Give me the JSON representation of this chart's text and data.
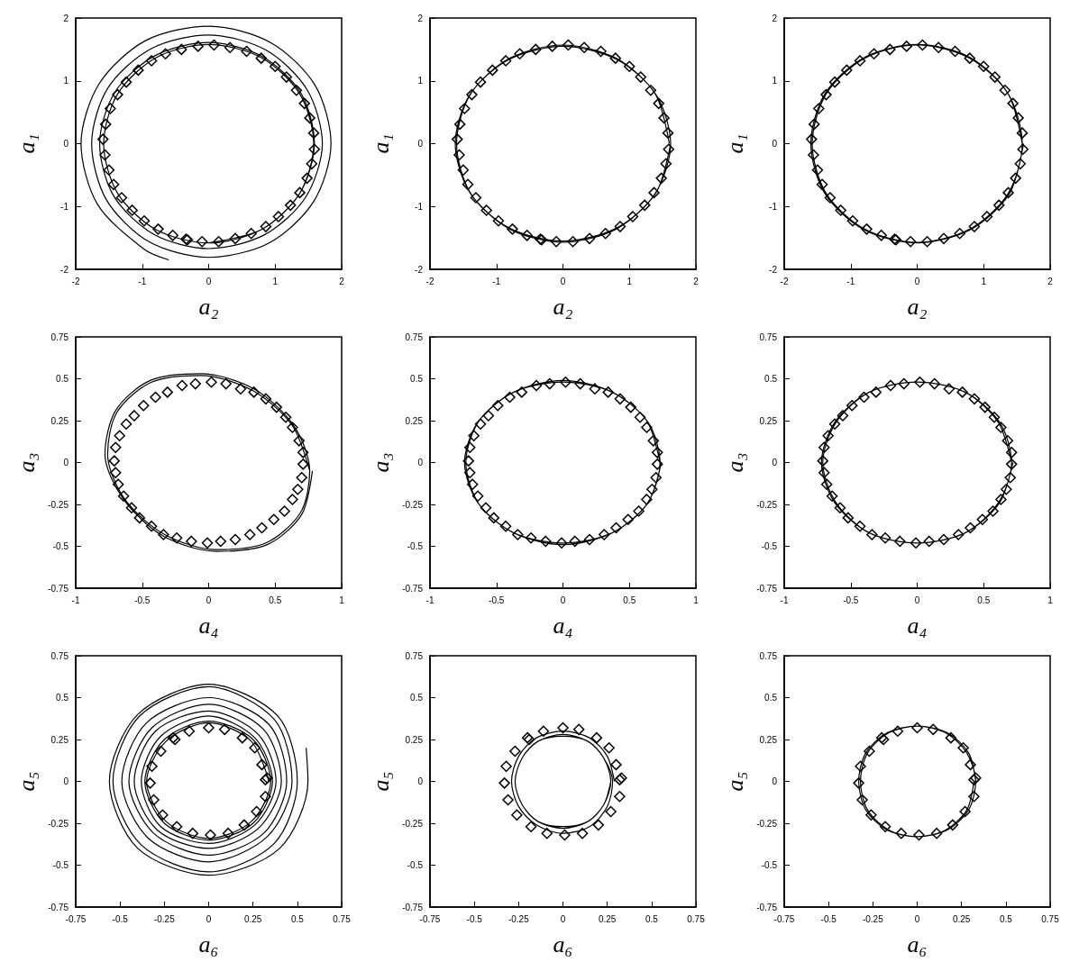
{
  "chart_data": [
    {
      "type": "line",
      "xlabel": "a₂",
      "ylabel": "a₁",
      "xlim": [
        -2,
        2
      ],
      "ylim": [
        -2,
        2
      ],
      "xticks": [
        -2,
        -1,
        0,
        1,
        2
      ],
      "yticks": [
        -2,
        -1,
        0,
        1,
        2
      ],
      "series": [
        {
          "type": "line",
          "marker": "none",
          "color": "#000000",
          "x": [
            -0.6,
            -0.97,
            -1.67,
            -1.92,
            -1.65,
            -0.95,
            0,
            0.93,
            1.6,
            1.84,
            1.58,
            0.91,
            0,
            -0.9,
            -1.54,
            -1.76,
            -1.52,
            -0.87,
            0,
            0.86,
            1.48,
            1.71,
            1.46,
            0.84,
            0,
            -0.83,
            -1.43,
            -1.64,
            -1.41,
            -0.81,
            0,
            0.8,
            1.39,
            1.59,
            1.37,
            0.79,
            0,
            -0.79,
            -1.37,
            -1.58,
            -1.37,
            -0.79,
            0,
            0.79,
            1.37,
            1.58,
            1.37,
            0.79,
            0
          ],
          "values": [
            -1.85,
            -1.68,
            -0.97,
            0,
            0.95,
            1.64,
            1.87,
            1.61,
            0.93,
            0,
            -0.92,
            -1.58,
            -1.81,
            -1.56,
            -0.89,
            0,
            0.88,
            1.51,
            1.73,
            1.49,
            0.86,
            0,
            -0.85,
            -1.45,
            -1.67,
            -1.44,
            -0.83,
            0,
            0.82,
            1.4,
            1.61,
            1.39,
            0.8,
            0,
            -0.79,
            -1.37,
            -1.58,
            -1.37,
            -0.79,
            0,
            0.79,
            1.37,
            1.58,
            1.37,
            0.79,
            0,
            -0.79,
            -1.37,
            -1.58
          ]
        },
        {
          "type": "scatter",
          "marker": "diamond",
          "color": "#000000",
          "x": [
            0.08,
            0.32,
            0.57,
            0.79,
            1.0,
            1.17,
            1.32,
            1.44,
            1.52,
            1.58,
            1.59,
            1.55,
            1.48,
            1.37,
            1.23,
            1.05,
            0.86,
            0.64,
            0.4,
            0.15,
            -0.1,
            -0.32,
            -0.34,
            -0.54,
            -0.76,
            -0.97,
            -1.15,
            -1.31,
            -1.43,
            -1.5,
            -1.56,
            -1.59,
            -1.55,
            -1.48,
            -1.37,
            -1.24,
            -1.06,
            -0.86,
            -0.65,
            -0.41,
            -0.16
          ],
          "values": [
            1.57,
            1.53,
            1.47,
            1.36,
            1.23,
            1.06,
            0.85,
            0.64,
            0.41,
            0.17,
            -0.09,
            -0.32,
            -0.55,
            -0.78,
            -0.98,
            -1.16,
            -1.32,
            -1.43,
            -1.51,
            -1.56,
            -1.56,
            -1.53,
            -1.52,
            -1.46,
            -1.36,
            -1.23,
            -1.06,
            -0.86,
            -0.65,
            -0.42,
            -0.18,
            0.07,
            0.31,
            0.56,
            0.78,
            0.98,
            1.17,
            1.32,
            1.43,
            1.5,
            1.55
          ]
        }
      ]
    },
    {
      "type": "line",
      "xlabel": "a₂",
      "ylabel": "a₁",
      "xlim": [
        -2,
        2
      ],
      "ylim": [
        -2,
        2
      ],
      "xticks": [
        -2,
        -1,
        0,
        1,
        2
      ],
      "yticks": [
        -2,
        -1,
        0,
        1,
        2
      ],
      "series": [
        {
          "type": "line",
          "marker": "none",
          "color": "#000000",
          "x": [
            1.6,
            1.39,
            0.8,
            0,
            -0.8,
            -1.39,
            -1.6,
            -1.39,
            -0.8,
            0,
            0.8,
            1.39,
            1.62,
            1.4,
            0.81,
            0,
            -0.81,
            -1.4,
            -1.62,
            -1.4,
            -0.81,
            0,
            0.81,
            1.4,
            1.62
          ],
          "values": [
            0,
            0.79,
            1.36,
            1.57,
            1.36,
            0.79,
            0,
            -0.79,
            -1.36,
            -1.57,
            -1.36,
            -0.79,
            0,
            0.78,
            1.34,
            1.55,
            1.34,
            0.78,
            0,
            -0.78,
            -1.34,
            -1.55,
            -1.34,
            -0.78,
            0
          ]
        },
        {
          "type": "scatter",
          "marker": "diamond",
          "color": "#000000",
          "x": [
            0.08,
            0.32,
            0.57,
            0.79,
            1.0,
            1.17,
            1.32,
            1.44,
            1.52,
            1.58,
            1.59,
            1.55,
            1.48,
            1.37,
            1.23,
            1.05,
            0.86,
            0.64,
            0.4,
            0.15,
            -0.1,
            -0.32,
            -0.34,
            -0.54,
            -0.76,
            -0.97,
            -1.15,
            -1.31,
            -1.43,
            -1.5,
            -1.56,
            -1.59,
            -1.55,
            -1.48,
            -1.37,
            -1.24,
            -1.06,
            -0.86,
            -0.65,
            -0.41,
            -0.16
          ],
          "values": [
            1.57,
            1.53,
            1.47,
            1.36,
            1.23,
            1.06,
            0.85,
            0.64,
            0.41,
            0.17,
            -0.09,
            -0.32,
            -0.55,
            -0.78,
            -0.98,
            -1.16,
            -1.32,
            -1.43,
            -1.51,
            -1.56,
            -1.56,
            -1.53,
            -1.52,
            -1.46,
            -1.36,
            -1.23,
            -1.06,
            -0.86,
            -0.65,
            -0.42,
            -0.18,
            0.07,
            0.31,
            0.56,
            0.78,
            0.98,
            1.17,
            1.32,
            1.43,
            1.5,
            1.55
          ]
        }
      ]
    },
    {
      "type": "line",
      "xlabel": "a₂",
      "ylabel": "a₁",
      "xlim": [
        -2,
        2
      ],
      "ylim": [
        -2,
        2
      ],
      "xticks": [
        -2,
        -1,
        0,
        1,
        2
      ],
      "yticks": [
        -2,
        -1,
        0,
        1,
        2
      ],
      "series": [
        {
          "type": "line",
          "marker": "none",
          "color": "#000000",
          "x": [
            1.58,
            1.37,
            0.79,
            0,
            -0.79,
            -1.37,
            -1.58,
            -1.37,
            -0.79,
            0,
            0.79,
            1.37,
            1.58,
            1.37,
            0.8,
            0,
            -0.8,
            -1.39,
            -1.6,
            -1.39,
            -0.8,
            0,
            0.8,
            1.39,
            1.6
          ],
          "values": [
            0,
            0.79,
            1.36,
            1.57,
            1.36,
            0.79,
            0,
            -0.79,
            -1.36,
            -1.57,
            -1.36,
            -0.79,
            0,
            0.79,
            1.37,
            1.58,
            1.37,
            0.79,
            0,
            -0.79,
            -1.37,
            -1.58,
            -1.37,
            -0.79,
            0
          ]
        },
        {
          "type": "scatter",
          "marker": "diamond",
          "color": "#000000",
          "x": [
            0.08,
            0.32,
            0.57,
            0.79,
            1.0,
            1.17,
            1.32,
            1.44,
            1.52,
            1.58,
            1.59,
            1.55,
            1.48,
            1.37,
            1.23,
            1.05,
            0.86,
            0.64,
            0.4,
            0.15,
            -0.1,
            -0.32,
            -0.34,
            -0.54,
            -0.76,
            -0.97,
            -1.15,
            -1.31,
            -1.43,
            -1.5,
            -1.56,
            -1.59,
            -1.55,
            -1.48,
            -1.37,
            -1.24,
            -1.06,
            -0.86,
            -0.65,
            -0.41,
            -0.16
          ],
          "values": [
            1.57,
            1.53,
            1.47,
            1.36,
            1.23,
            1.06,
            0.85,
            0.64,
            0.41,
            0.17,
            -0.09,
            -0.32,
            -0.55,
            -0.78,
            -0.98,
            -1.16,
            -1.32,
            -1.43,
            -1.51,
            -1.56,
            -1.56,
            -1.53,
            -1.52,
            -1.46,
            -1.36,
            -1.23,
            -1.06,
            -0.86,
            -0.65,
            -0.42,
            -0.18,
            0.07,
            0.31,
            0.56,
            0.78,
            0.98,
            1.17,
            1.32,
            1.43,
            1.5,
            1.55
          ]
        }
      ]
    },
    {
      "type": "line",
      "xlabel": "a₄",
      "ylabel": "a₃",
      "xlim": [
        -1,
        1
      ],
      "ylim": [
        -0.75,
        0.75
      ],
      "xticks": [
        -1,
        -0.5,
        0,
        0.5,
        1
      ],
      "yticks": [
        -0.75,
        -0.5,
        -0.25,
        0,
        0.25,
        0.5,
        0.75
      ],
      "series": [
        {
          "type": "line",
          "marker": "none",
          "color": "#000000",
          "x": [
            0.76,
            0.63,
            0.33,
            -0.06,
            -0.43,
            -0.69,
            -0.76,
            -0.63,
            -0.33,
            0.06,
            0.43,
            0.69,
            0.76,
            0.64,
            0.34,
            -0.06,
            -0.44,
            -0.7,
            -0.78,
            -0.64,
            -0.34,
            0.06,
            0.44,
            0.7,
            0.78
          ],
          "values": [
            -0.05,
            0.22,
            0.43,
            0.52,
            0.48,
            0.3,
            0.05,
            -0.22,
            -0.43,
            -0.52,
            -0.48,
            -0.3,
            -0.05,
            0.22,
            0.44,
            0.53,
            0.49,
            0.31,
            0.05,
            -0.22,
            -0.44,
            -0.53,
            -0.49,
            -0.31,
            -0.05
          ]
        },
        {
          "type": "scatter",
          "marker": "diamond",
          "color": "#000000",
          "x": [
            0.02,
            0.13,
            0.24,
            0.34,
            0.43,
            0.51,
            0.58,
            0.63,
            0.68,
            0.71,
            0.71,
            0.7,
            0.67,
            0.63,
            0.57,
            0.49,
            0.4,
            0.31,
            0.2,
            0.09,
            -0.01,
            -0.13,
            -0.24,
            -0.34,
            -0.43,
            -0.52,
            -0.58,
            -0.64,
            -0.68,
            -0.7,
            -0.71,
            -0.7,
            -0.67,
            -0.62,
            -0.56,
            -0.49,
            -0.4,
            -0.31,
            -0.2,
            -0.1
          ],
          "values": [
            0.48,
            0.47,
            0.44,
            0.42,
            0.38,
            0.33,
            0.27,
            0.21,
            0.13,
            0.06,
            -0.01,
            -0.09,
            -0.16,
            -0.22,
            -0.29,
            -0.34,
            -0.39,
            -0.43,
            -0.46,
            -0.47,
            -0.48,
            -0.47,
            -0.45,
            -0.43,
            -0.38,
            -0.33,
            -0.27,
            -0.2,
            -0.13,
            -0.06,
            0.01,
            0.09,
            0.16,
            0.23,
            0.28,
            0.34,
            0.39,
            0.42,
            0.46,
            0.47
          ]
        }
      ]
    },
    {
      "type": "line",
      "xlabel": "a₄",
      "ylabel": "a₃",
      "xlim": [
        -1,
        1
      ],
      "ylim": [
        -0.75,
        0.75
      ],
      "xticks": [
        -1,
        -0.5,
        0,
        0.5,
        1
      ],
      "yticks": [
        -0.75,
        -0.5,
        -0.25,
        0,
        0.25,
        0.5,
        0.75
      ],
      "series": [
        {
          "type": "line",
          "marker": "none",
          "color": "#000000",
          "x": [
            0.73,
            0.63,
            0.37,
            0,
            -0.37,
            -0.63,
            -0.73,
            -0.63,
            -0.37,
            0,
            0.37,
            0.63,
            0.73,
            0.64,
            0.37,
            0,
            -0.37,
            -0.64,
            -0.74,
            -0.64,
            -0.37,
            0,
            0.37,
            0.64,
            0.74
          ],
          "values": [
            0,
            0.25,
            0.42,
            0.49,
            0.42,
            0.25,
            0,
            -0.25,
            -0.42,
            -0.49,
            -0.42,
            -0.25,
            0,
            0.24,
            0.42,
            0.48,
            0.42,
            0.24,
            0,
            -0.24,
            -0.42,
            -0.48,
            -0.42,
            -0.24,
            0
          ]
        },
        {
          "type": "scatter",
          "marker": "diamond",
          "color": "#000000",
          "x": [
            0.02,
            0.13,
            0.24,
            0.34,
            0.43,
            0.51,
            0.58,
            0.63,
            0.68,
            0.71,
            0.71,
            0.7,
            0.67,
            0.63,
            0.57,
            0.49,
            0.4,
            0.31,
            0.2,
            0.09,
            -0.01,
            -0.13,
            -0.24,
            -0.34,
            -0.43,
            -0.52,
            -0.58,
            -0.64,
            -0.68,
            -0.7,
            -0.71,
            -0.7,
            -0.67,
            -0.62,
            -0.56,
            -0.49,
            -0.4,
            -0.31,
            -0.2,
            -0.1
          ],
          "values": [
            0.48,
            0.47,
            0.44,
            0.42,
            0.38,
            0.33,
            0.27,
            0.21,
            0.13,
            0.06,
            -0.01,
            -0.09,
            -0.16,
            -0.22,
            -0.29,
            -0.34,
            -0.39,
            -0.43,
            -0.46,
            -0.47,
            -0.48,
            -0.47,
            -0.45,
            -0.43,
            -0.38,
            -0.33,
            -0.27,
            -0.2,
            -0.13,
            -0.06,
            0.01,
            0.09,
            0.16,
            0.23,
            0.28,
            0.34,
            0.39,
            0.42,
            0.46,
            0.47
          ]
        }
      ]
    },
    {
      "type": "line",
      "xlabel": "a₄",
      "ylabel": "a₃",
      "xlim": [
        -1,
        1
      ],
      "ylim": [
        -0.75,
        0.75
      ],
      "xticks": [
        -1,
        -0.5,
        0,
        0.5,
        1
      ],
      "yticks": [
        -0.75,
        -0.5,
        -0.25,
        0,
        0.25,
        0.5,
        0.75
      ],
      "series": [
        {
          "type": "line",
          "marker": "none",
          "color": "#000000",
          "x": [
            0.71,
            0.61,
            0.36,
            0,
            -0.36,
            -0.61,
            -0.71,
            -0.61,
            -0.36,
            0,
            0.36,
            0.61,
            0.71,
            0.62,
            0.36,
            0,
            -0.36,
            -0.62,
            -0.72,
            -0.62,
            -0.36,
            0,
            0.36,
            0.62,
            0.72
          ],
          "values": [
            0,
            0.24,
            0.42,
            0.48,
            0.42,
            0.24,
            0,
            -0.24,
            -0.42,
            -0.48,
            -0.42,
            -0.24,
            0,
            0.24,
            0.42,
            0.48,
            0.42,
            0.24,
            0,
            -0.24,
            -0.42,
            -0.48,
            -0.42,
            -0.24,
            0
          ]
        },
        {
          "type": "scatter",
          "marker": "diamond",
          "color": "#000000",
          "x": [
            0.02,
            0.13,
            0.24,
            0.34,
            0.43,
            0.51,
            0.58,
            0.63,
            0.68,
            0.71,
            0.71,
            0.7,
            0.67,
            0.63,
            0.57,
            0.49,
            0.4,
            0.31,
            0.2,
            0.09,
            -0.01,
            -0.13,
            -0.24,
            -0.34,
            -0.43,
            -0.52,
            -0.58,
            -0.64,
            -0.68,
            -0.7,
            -0.71,
            -0.7,
            -0.67,
            -0.62,
            -0.56,
            -0.49,
            -0.4,
            -0.31,
            -0.2,
            -0.1
          ],
          "values": [
            0.48,
            0.47,
            0.44,
            0.42,
            0.38,
            0.33,
            0.27,
            0.21,
            0.13,
            0.06,
            -0.01,
            -0.09,
            -0.16,
            -0.22,
            -0.29,
            -0.34,
            -0.39,
            -0.43,
            -0.46,
            -0.47,
            -0.48,
            -0.47,
            -0.45,
            -0.43,
            -0.38,
            -0.33,
            -0.27,
            -0.2,
            -0.13,
            -0.06,
            0.01,
            0.09,
            0.16,
            0.23,
            0.28,
            0.34,
            0.39,
            0.42,
            0.46,
            0.47
          ]
        }
      ]
    },
    {
      "type": "line",
      "xlabel": "a₆",
      "ylabel": "a₅",
      "xlim": [
        -0.75,
        0.75
      ],
      "ylim": [
        -0.75,
        0.75
      ],
      "xticks": [
        -0.75,
        -0.5,
        -0.25,
        0,
        0.25,
        0.5,
        0.75
      ],
      "yticks": [
        -0.75,
        -0.5,
        -0.25,
        0,
        0.25,
        0.5,
        0.75
      ],
      "series": [
        {
          "type": "line",
          "marker": "none",
          "color": "#000000",
          "x": [
            0.55,
            0.56,
            0.4,
            0,
            -0.4,
            -0.56,
            -0.4,
            0,
            0.39,
            0.5,
            0.37,
            0,
            -0.38,
            -0.54,
            -0.39,
            0,
            0.37,
            0.47,
            0.33,
            0,
            -0.34,
            -0.49,
            -0.35,
            0,
            0.34,
            0.44,
            0.31,
            0,
            -0.31,
            -0.45,
            -0.32,
            0,
            0.31,
            0.41,
            0.28,
            0,
            -0.29,
            -0.42,
            -0.3,
            0,
            0.28,
            0.38,
            0.26,
            0,
            -0.27,
            -0.38,
            -0.27,
            0,
            0.26,
            0.36,
            0.25,
            0,
            -0.25,
            -0.36,
            -0.25,
            0,
            0.25,
            0.35,
            0.24,
            0,
            -0.24,
            -0.35,
            -0.24,
            0,
            0.24,
            0.34
          ],
          "values": [
            0.2,
            0,
            -0.4,
            -0.56,
            -0.4,
            0,
            0.4,
            0.58,
            0.39,
            0,
            -0.37,
            -0.54,
            -0.38,
            0,
            0.39,
            0.565,
            0.37,
            0,
            -0.33,
            -0.48,
            -0.34,
            0,
            0.35,
            0.5,
            0.34,
            0,
            -0.31,
            -0.44,
            -0.31,
            0,
            0.32,
            0.46,
            0.31,
            0,
            -0.28,
            -0.4,
            -0.29,
            0,
            0.3,
            0.42,
            0.28,
            0,
            -0.26,
            -0.37,
            -0.27,
            0,
            0.27,
            0.39,
            0.26,
            0,
            -0.25,
            -0.35,
            -0.25,
            0,
            0.25,
            0.36,
            0.25,
            0,
            -0.24,
            -0.34,
            -0.24,
            0,
            0.24,
            0.35,
            0.24,
            0
          ]
        },
        {
          "type": "scatter",
          "marker": "diamond",
          "color": "#000000",
          "x": [
            0,
            0.09,
            0.19,
            0.26,
            0.3,
            0.32,
            0.33,
            0.32,
            0.27,
            0.2,
            0.11,
            0.01,
            -0.09,
            -0.18,
            -0.26,
            -0.31,
            -0.33,
            -0.32,
            -0.27,
            -0.2,
            -0.19,
            -0.11
          ],
          "values": [
            0.32,
            0.31,
            0.26,
            0.2,
            0.1,
            0.01,
            0.02,
            -0.09,
            -0.18,
            -0.26,
            -0.31,
            -0.32,
            -0.31,
            -0.27,
            -0.2,
            -0.11,
            -0.01,
            0.09,
            0.18,
            0.26,
            0.25,
            0.3
          ]
        }
      ]
    },
    {
      "type": "line",
      "xlabel": "a₆",
      "ylabel": "a₅",
      "xlim": [
        -0.75,
        0.75
      ],
      "ylim": [
        -0.75,
        0.75
      ],
      "xticks": [
        -0.75,
        -0.5,
        -0.25,
        0,
        0.25,
        0.5,
        0.75
      ],
      "yticks": [
        -0.75,
        -0.5,
        -0.25,
        0,
        0.25,
        0.5,
        0.75
      ],
      "series": [
        {
          "type": "line",
          "marker": "none",
          "color": "#000000",
          "x": [
            0.29,
            0.25,
            0.15,
            0,
            -0.15,
            -0.25,
            -0.29,
            -0.25,
            -0.15,
            0,
            0.15,
            0.25,
            0.28,
            0.23,
            0.14,
            0,
            -0.14,
            -0.23,
            -0.27,
            -0.23,
            -0.14,
            0,
            0.14,
            0.23,
            0.27,
            0.23,
            0.14,
            0,
            -0.14,
            -0.23,
            -0.27,
            -0.23,
            -0.14,
            0,
            0.14,
            0.23,
            0.27
          ],
          "values": [
            0,
            0.15,
            0.26,
            0.3,
            0.26,
            0.15,
            0,
            -0.15,
            -0.26,
            -0.31,
            -0.27,
            -0.15,
            0,
            0.14,
            0.24,
            0.28,
            0.24,
            0.14,
            0,
            -0.14,
            -0.24,
            -0.28,
            -0.24,
            -0.14,
            0,
            0.14,
            0.24,
            0.27,
            0.24,
            0.14,
            0,
            -0.14,
            -0.24,
            -0.27,
            -0.24,
            -0.14,
            0
          ]
        },
        {
          "type": "scatter",
          "marker": "diamond",
          "color": "#000000",
          "x": [
            0,
            0.09,
            0.19,
            0.26,
            0.3,
            0.32,
            0.33,
            0.32,
            0.27,
            0.2,
            0.11,
            0.01,
            -0.09,
            -0.18,
            -0.26,
            -0.31,
            -0.33,
            -0.32,
            -0.27,
            -0.2,
            -0.19,
            -0.11
          ],
          "values": [
            0.32,
            0.31,
            0.26,
            0.2,
            0.1,
            0.01,
            0.02,
            -0.09,
            -0.18,
            -0.26,
            -0.31,
            -0.32,
            -0.31,
            -0.27,
            -0.2,
            -0.11,
            -0.01,
            0.09,
            0.18,
            0.26,
            0.25,
            0.3
          ]
        }
      ]
    },
    {
      "type": "line",
      "xlabel": "a₆",
      "ylabel": "a₅",
      "xlim": [
        -0.75,
        0.75
      ],
      "ylim": [
        -0.75,
        0.75
      ],
      "xticks": [
        -0.75,
        -0.5,
        -0.25,
        0,
        0.25,
        0.5,
        0.75
      ],
      "yticks": [
        -0.75,
        -0.5,
        -0.25,
        0,
        0.25,
        0.5,
        0.75
      ],
      "series": [
        {
          "type": "line",
          "marker": "none",
          "color": "#000000",
          "x": [
            0.33,
            0.29,
            0.17,
            0,
            -0.17,
            -0.29,
            -0.33,
            -0.29,
            -0.17,
            0,
            0.17,
            0.29,
            0.33,
            0.28,
            0.16,
            0,
            -0.16,
            -0.28,
            -0.32,
            -0.28,
            -0.16,
            0,
            0.16,
            0.28,
            0.32
          ],
          "values": [
            0,
            0.17,
            0.29,
            0.33,
            0.29,
            0.17,
            0,
            -0.17,
            -0.29,
            -0.33,
            -0.29,
            -0.17,
            0,
            0.17,
            0.29,
            0.33,
            0.29,
            0.17,
            0,
            -0.17,
            -0.29,
            -0.33,
            -0.29,
            -0.17,
            0
          ]
        },
        {
          "type": "scatter",
          "marker": "diamond",
          "color": "#000000",
          "x": [
            0,
            0.09,
            0.19,
            0.26,
            0.3,
            0.32,
            0.33,
            0.32,
            0.27,
            0.2,
            0.11,
            0.01,
            -0.09,
            -0.18,
            -0.26,
            -0.31,
            -0.33,
            -0.32,
            -0.27,
            -0.2,
            -0.19,
            -0.11
          ],
          "values": [
            0.32,
            0.31,
            0.26,
            0.2,
            0.1,
            0.01,
            0.02,
            -0.09,
            -0.18,
            -0.26,
            -0.31,
            -0.32,
            -0.31,
            -0.27,
            -0.2,
            -0.11,
            -0.01,
            0.09,
            0.18,
            0.26,
            0.25,
            0.3
          ]
        }
      ]
    }
  ]
}
